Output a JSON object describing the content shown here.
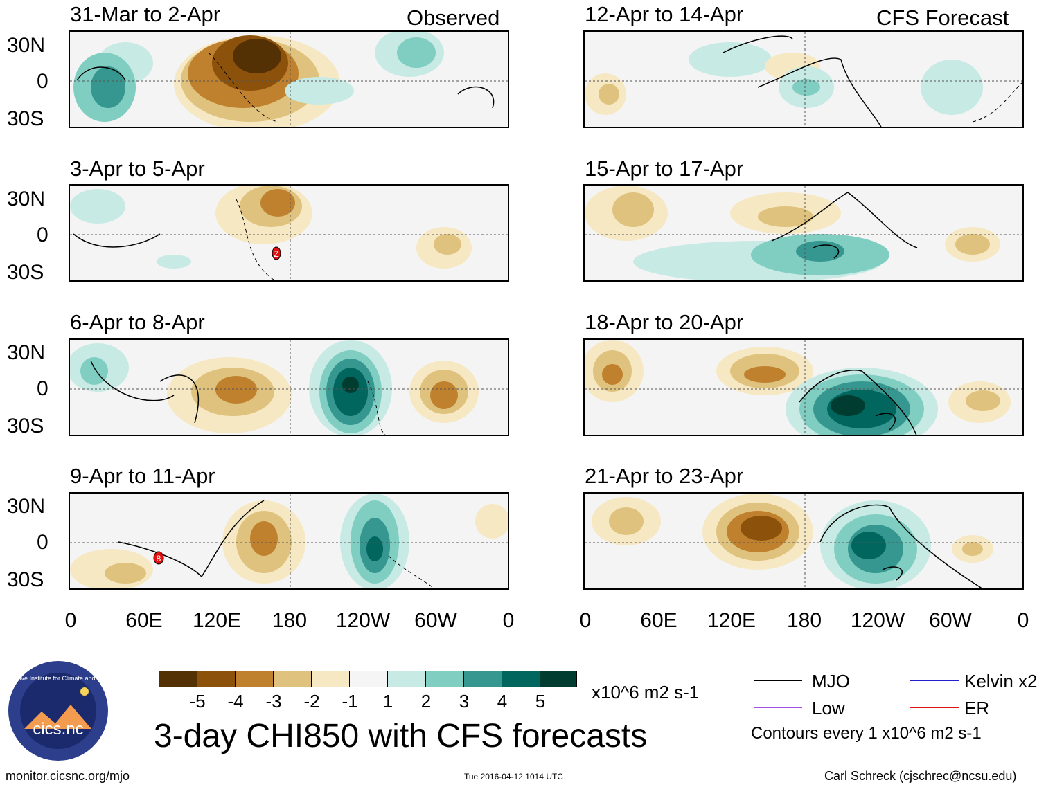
{
  "header": {
    "observed_label": "Observed",
    "forecast_label": "CFS Forecast"
  },
  "panels": {
    "left": [
      "31-Mar to 2-Apr",
      "3-Apr to 5-Apr",
      "6-Apr to 8-Apr",
      "9-Apr to 11-Apr"
    ],
    "right": [
      "12-Apr to 14-Apr",
      "15-Apr to 17-Apr",
      "18-Apr to 20-Apr",
      "21-Apr to 23-Apr"
    ]
  },
  "axes": {
    "lat_labels": [
      "30N",
      "0",
      "30S"
    ],
    "lon_labels": [
      "0",
      "60E",
      "120E",
      "180",
      "120W",
      "60W",
      "0"
    ]
  },
  "markers": {
    "er_z": "Z",
    "er_8": "8"
  },
  "colorbar": {
    "colors": [
      "#543005",
      "#8c510a",
      "#bf812d",
      "#dfc27d",
      "#f6e8c3",
      "#f5f5f5",
      "#c7eae5",
      "#80cdc1",
      "#35978f",
      "#01665e",
      "#003c30"
    ],
    "labels": [
      "-5",
      "-4",
      "-3",
      "-2",
      "-1",
      "1",
      "2",
      "3",
      "4",
      "5"
    ],
    "units": "x10^6 m2 s-1"
  },
  "legend": {
    "mjo": "MJO",
    "kelvin": "Kelvin x2",
    "low": "Low",
    "er": "ER",
    "contours_note": "Contours every 1 x10^6 m2 s-1",
    "colors": {
      "mjo": "#000000",
      "kelvin": "#2020d0",
      "low": "#a050e0",
      "er": "#e01010"
    }
  },
  "logo": {
    "name": "cics.nc",
    "ring_text": "Cooperative Institute for Climate and Satellites"
  },
  "title": "3-day CHI850 with CFS forecasts",
  "footer": {
    "url": "monitor.cicsnc.org/mjo",
    "timestamp": "Tue 2016-04-12 1014 UTC",
    "author": "Carl Schreck (cjschrec@ncsu.edu)"
  }
}
